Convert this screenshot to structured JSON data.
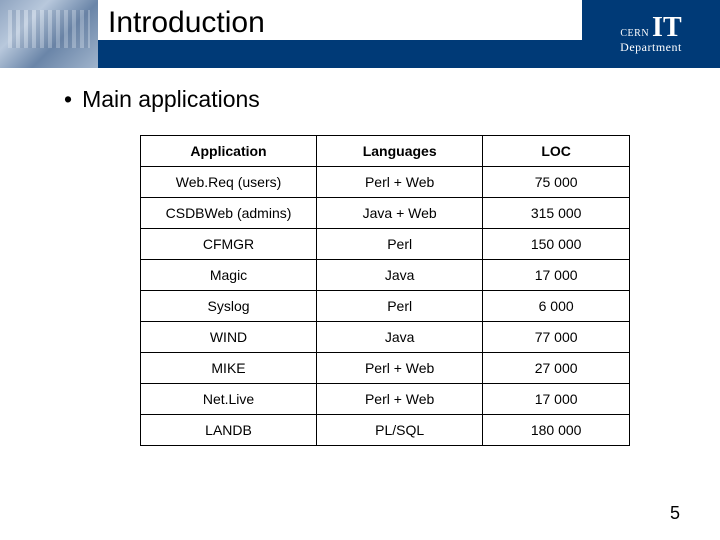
{
  "header": {
    "title": "Introduction",
    "logo": {
      "brand": "CERN",
      "unit": "IT",
      "dept": "Department"
    }
  },
  "content": {
    "bullet": "Main applications"
  },
  "table": {
    "type": "table",
    "columns": [
      "Application",
      "Languages",
      "LOC"
    ],
    "rows": [
      [
        "Web.Req (users)",
        "Perl + Web",
        "75 000"
      ],
      [
        "CSDBWeb (admins)",
        "Java + Web",
        "315 000"
      ],
      [
        "CFMGR",
        "Perl",
        "150 000"
      ],
      [
        "Magic",
        "Java",
        "17 000"
      ],
      [
        "Syslog",
        "Perl",
        "6 000"
      ],
      [
        "WIND",
        "Java",
        "77 000"
      ],
      [
        "MIKE",
        "Perl + Web",
        "27 000"
      ],
      [
        "Net.Live",
        "Perl + Web",
        "17 000"
      ],
      [
        "LANDB",
        "PL/SQL",
        "180 000"
      ]
    ],
    "border_color": "#000000",
    "header_fontweight": "bold",
    "cell_fontsize": 14,
    "column_widths_pct": [
      36,
      34,
      30
    ]
  },
  "colors": {
    "brand_blue": "#003a77",
    "background": "#ffffff",
    "text": "#000000"
  },
  "page_number": "5"
}
